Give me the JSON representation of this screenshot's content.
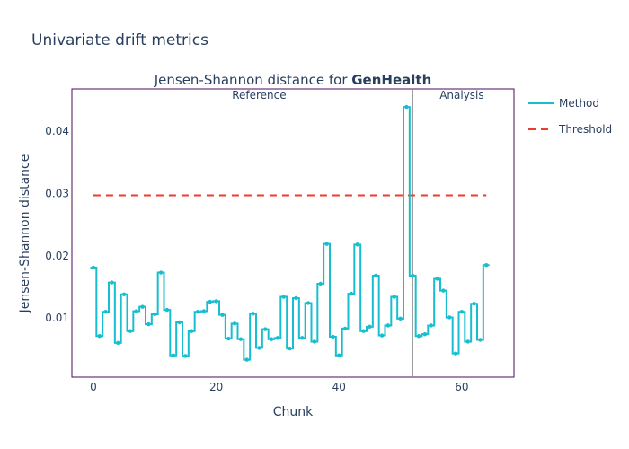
{
  "chart_data": {
    "type": "line",
    "title": "Univariate drift metrics",
    "subtitle_prefix": "Jensen-Shannon distance for ",
    "subtitle_bold": "GenHealth",
    "xlabel": "Chunk",
    "ylabel": "Jensen-Shannon distance",
    "xlim": [
      -3.5,
      68.5
    ],
    "ylim": [
      0.0005,
      0.0468
    ],
    "xticks": [
      0,
      20,
      40,
      60
    ],
    "yticks": [
      0.01,
      0.02,
      0.03,
      0.04
    ],
    "ytick_labels": [
      "0.01",
      "0.02",
      "0.03",
      "0.04"
    ],
    "grid": false,
    "regions": [
      {
        "label": "Reference",
        "x_center": 27
      },
      {
        "label": "Analysis",
        "x_center": 60
      }
    ],
    "boundary_x": 52,
    "legend": {
      "placement": "right",
      "items": [
        {
          "name": "Method",
          "style": "solid",
          "color": "#17becf"
        },
        {
          "name": "Threshold",
          "style": "dashed",
          "color": "#ef3b2c"
        }
      ]
    },
    "series": [
      {
        "name": "Method",
        "style": "step",
        "color": "#17becf",
        "x": [
          0,
          1,
          2,
          3,
          4,
          5,
          6,
          7,
          8,
          9,
          10,
          11,
          12,
          13,
          14,
          15,
          16,
          17,
          18,
          19,
          20,
          21,
          22,
          23,
          24,
          25,
          26,
          27,
          28,
          29,
          30,
          31,
          32,
          33,
          34,
          35,
          36,
          37,
          38,
          39,
          40,
          41,
          42,
          43,
          44,
          45,
          46,
          47,
          48,
          49,
          50,
          51,
          52,
          53,
          54,
          55,
          56,
          57,
          58,
          59,
          60,
          61,
          62,
          63,
          64
        ],
        "values": [
          0.0181,
          0.0071,
          0.011,
          0.0157,
          0.006,
          0.0138,
          0.0079,
          0.0111,
          0.0118,
          0.009,
          0.0106,
          0.0173,
          0.0113,
          0.004,
          0.0093,
          0.0039,
          0.0079,
          0.011,
          0.0111,
          0.0126,
          0.0127,
          0.0105,
          0.0067,
          0.0091,
          0.0066,
          0.0033,
          0.0107,
          0.0052,
          0.0082,
          0.0066,
          0.0068,
          0.0134,
          0.0051,
          0.0132,
          0.0068,
          0.0124,
          0.0062,
          0.0155,
          0.0219,
          0.007,
          0.004,
          0.0083,
          0.0139,
          0.0218,
          0.0079,
          0.0086,
          0.0168,
          0.0072,
          0.0088,
          0.0134,
          0.0099,
          0.0439,
          0.0168,
          0.0071,
          0.0074,
          0.0088,
          0.0163,
          0.0144,
          0.0101,
          0.0043,
          0.011,
          0.0062,
          0.0123,
          0.0065,
          0.0185
        ]
      },
      {
        "name": "Threshold",
        "style": "dashed",
        "color": "#ef3b2c",
        "x": [
          0,
          64
        ],
        "values": [
          0.0297,
          0.0297
        ]
      }
    ]
  }
}
